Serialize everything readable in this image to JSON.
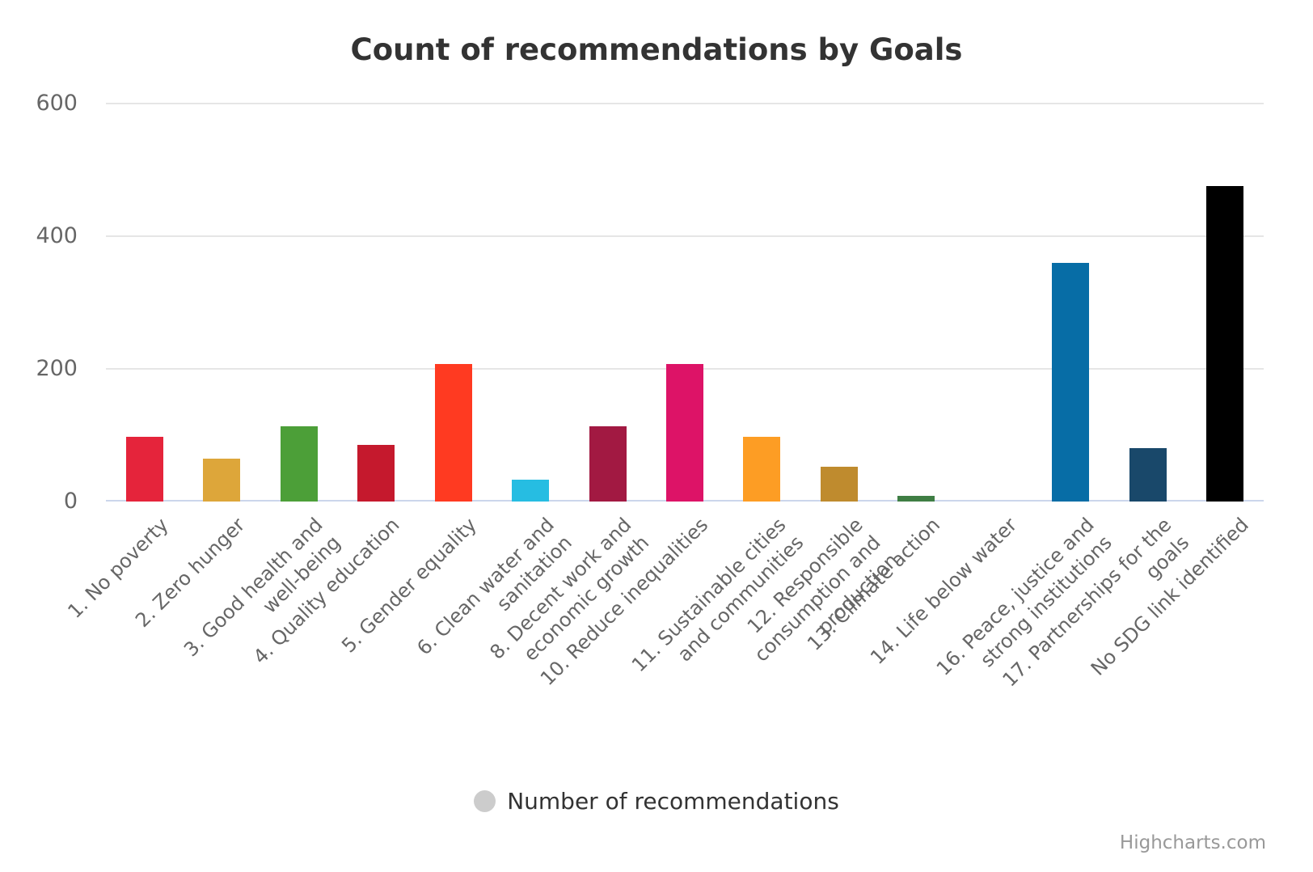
{
  "title": "Count of recommendations by Goals",
  "legend": {
    "label": "Number of recommendations",
    "marker_color": "#cccccc"
  },
  "credit": "Highcharts.com",
  "styles": {
    "title_color": "#333333",
    "axis_label_color": "#666666",
    "grid_color": "#e6e6e6",
    "axis_line_color": "#ccd6eb",
    "legend_text_color": "#333333",
    "credit_color": "#999999",
    "background": "#ffffff"
  },
  "chart_data": {
    "type": "bar",
    "title": "Count of recommendations by Goals",
    "xlabel": "",
    "ylabel": "",
    "ylim": [
      0,
      600
    ],
    "yticks": [
      0,
      200,
      400,
      600
    ],
    "grid": true,
    "legend_position": "bottom",
    "categories": [
      "1. No poverty",
      "2. Zero hunger",
      "3. Good health and well-being",
      "4. Quality education",
      "5. Gender equality",
      "6. Clean water and sanitation",
      "8. Decent work and economic growth",
      "10. Reduce inequalities",
      "11. Sustainable cities and communities",
      "12. Responsible consumption and production",
      "13. Climate action",
      "14. Life below water",
      "16. Peace, justice and strong institutions",
      "17. Partnerships for the goals",
      "No SDG link identified"
    ],
    "tick_label_lines": [
      [
        "1. No poverty"
      ],
      [
        "2. Zero hunger"
      ],
      [
        "3. Good health and",
        "well-being"
      ],
      [
        "4. Quality education"
      ],
      [
        "5. Gender equality"
      ],
      [
        "6. Clean water and",
        "sanitation"
      ],
      [
        "8. Decent work and",
        "economic growth"
      ],
      [
        "10. Reduce inequalities"
      ],
      [
        "11. Sustainable cities",
        "and communities"
      ],
      [
        "12. Responsible",
        "consumption and",
        "production"
      ],
      [
        "13. Climate action"
      ],
      [
        "14. Life below water"
      ],
      [
        "16. Peace, justice and",
        "strong institutions"
      ],
      [
        "17. Partnerships for the",
        "goals"
      ],
      [
        "No SDG link identified"
      ]
    ],
    "series": [
      {
        "name": "Number of recommendations",
        "values": [
          98,
          65,
          114,
          85,
          207,
          33,
          114,
          207,
          97,
          53,
          8,
          0,
          360,
          81,
          476
        ]
      }
    ],
    "colors": [
      "#E5243B",
      "#DDA63A",
      "#4C9F38",
      "#C5192D",
      "#FF3A21",
      "#26BDE2",
      "#A21942",
      "#DD1367",
      "#FD9D24",
      "#BF8B2E",
      "#3F7E44",
      null,
      "#076DA6",
      "#19486A",
      "#000000"
    ]
  }
}
